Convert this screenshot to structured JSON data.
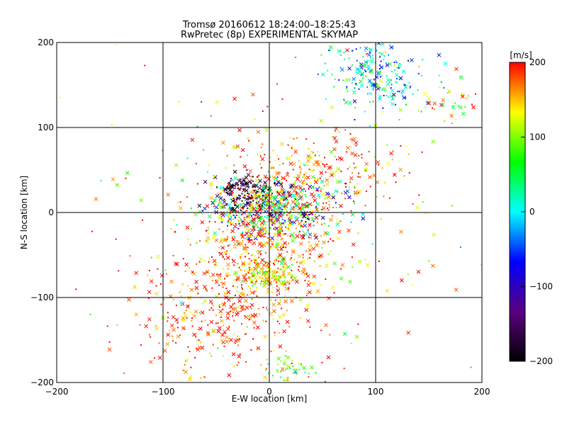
{
  "chart_data": {
    "type": "scatter",
    "title": "Tromsø 20160612 18:24:00–18:25:43",
    "subtitle": "RwPretec (8p) EXPERIMENTAL SKYMAP",
    "xlabel": "E-W location [km]",
    "ylabel": "N-S location [km]",
    "xlim": [
      -200,
      200
    ],
    "ylim": [
      -200,
      200
    ],
    "xticks": [
      "−200",
      "−100",
      "0",
      "100",
      "200"
    ],
    "yticks": [
      "200",
      "100",
      "0",
      "−100",
      "−200"
    ],
    "grid": true,
    "colorbar": {
      "label": "[m/s]",
      "range": [
        -200,
        200
      ],
      "ticks": [
        "200",
        "100",
        "0",
        "−100",
        "−200"
      ],
      "colormap": [
        "#000000",
        "#5a0080",
        "#0000ff",
        "#00ffff",
        "#00ff00",
        "#ffff00",
        "#ff0000"
      ]
    },
    "marker_types": [
      "dot",
      "cross"
    ],
    "clusters": [
      {
        "center": [
          5,
          5
        ],
        "spread": [
          28,
          18
        ],
        "count": 650,
        "vmean": 60,
        "vsd": 130
      },
      {
        "center": [
          -25,
          25
        ],
        "spread": [
          12,
          10
        ],
        "count": 120,
        "vmean": -180,
        "vsd": 30
      },
      {
        "center": [
          -5,
          -40
        ],
        "spread": [
          35,
          30
        ],
        "count": 420,
        "vmean": 170,
        "vsd": 40
      },
      {
        "center": [
          -40,
          -120
        ],
        "spread": [
          40,
          35
        ],
        "count": 380,
        "vmean": 180,
        "vsd": 30
      },
      {
        "center": [
          40,
          50
        ],
        "spread": [
          45,
          25
        ],
        "count": 260,
        "vmean": 170,
        "vsd": 40
      },
      {
        "center": [
          0,
          -75
        ],
        "spread": [
          12,
          8
        ],
        "count": 90,
        "vmean": 110,
        "vsd": 30
      },
      {
        "center": [
          100,
          165
        ],
        "spread": [
          25,
          20
        ],
        "count": 220,
        "vmean": -10,
        "vsd": 60
      },
      {
        "center": [
          160,
          130
        ],
        "spread": [
          20,
          10
        ],
        "count": 40,
        "vmean": 120,
        "vsd": 50
      },
      {
        "center": [
          20,
          -185
        ],
        "spread": [
          12,
          10
        ],
        "count": 45,
        "vmean": 80,
        "vsd": 40
      },
      {
        "center": [
          0,
          0
        ],
        "spread": [
          120,
          110
        ],
        "count": 160,
        "vmean": 150,
        "vsd": 90
      }
    ]
  }
}
